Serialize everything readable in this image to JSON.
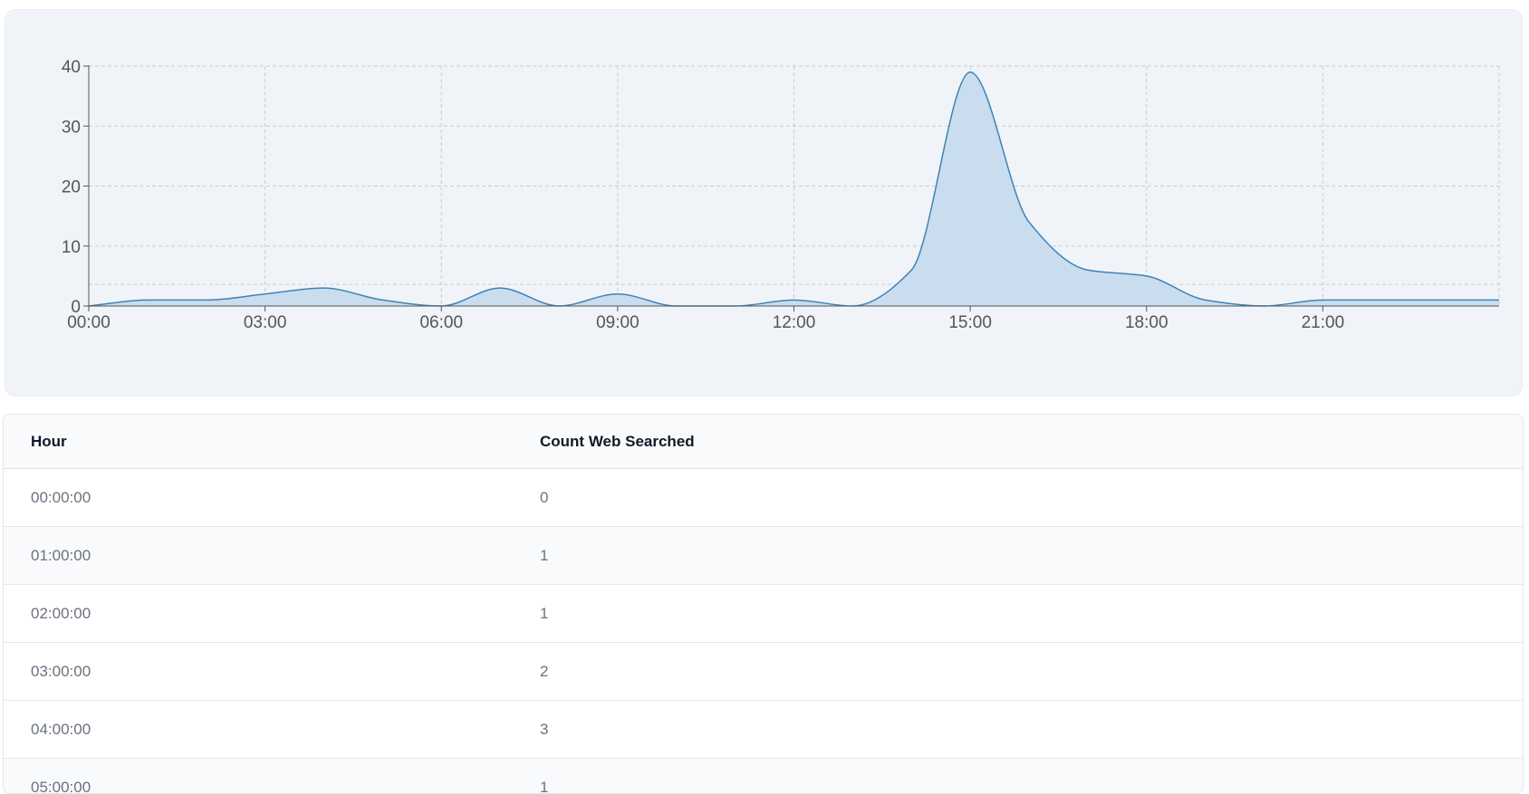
{
  "chart_data": {
    "type": "area",
    "x": [
      "00:00",
      "01:00",
      "02:00",
      "03:00",
      "04:00",
      "05:00",
      "06:00",
      "07:00",
      "08:00",
      "09:00",
      "10:00",
      "11:00",
      "12:00",
      "13:00",
      "14:00",
      "15:00",
      "16:00",
      "17:00",
      "18:00",
      "19:00",
      "20:00",
      "21:00",
      "22:00",
      "23:00"
    ],
    "values": [
      0,
      1,
      1,
      2,
      3,
      1,
      0,
      3,
      0,
      2,
      0,
      0,
      1,
      0,
      6,
      39,
      14,
      6,
      5,
      1,
      0,
      1,
      1,
      1
    ],
    "reference_line": 3.6,
    "x_ticks": [
      "00:00",
      "03:00",
      "06:00",
      "09:00",
      "12:00",
      "15:00",
      "18:00",
      "21:00"
    ],
    "y_ticks": [
      0,
      10,
      20,
      30,
      40
    ],
    "ylim": [
      0,
      40
    ],
    "grid": true,
    "colors": {
      "line": "#3e83b8",
      "fill": "#c9ddee",
      "grid": "#c8cdd3",
      "axis": "#555555"
    }
  },
  "table": {
    "headers": {
      "hour": "Hour",
      "count": "Count Web Searched"
    },
    "rows": [
      {
        "hour": "00:00:00",
        "count": "0"
      },
      {
        "hour": "01:00:00",
        "count": "1"
      },
      {
        "hour": "02:00:00",
        "count": "1"
      },
      {
        "hour": "03:00:00",
        "count": "2"
      },
      {
        "hour": "04:00:00",
        "count": "3"
      },
      {
        "hour": "05:00:00",
        "count": "1"
      }
    ]
  }
}
